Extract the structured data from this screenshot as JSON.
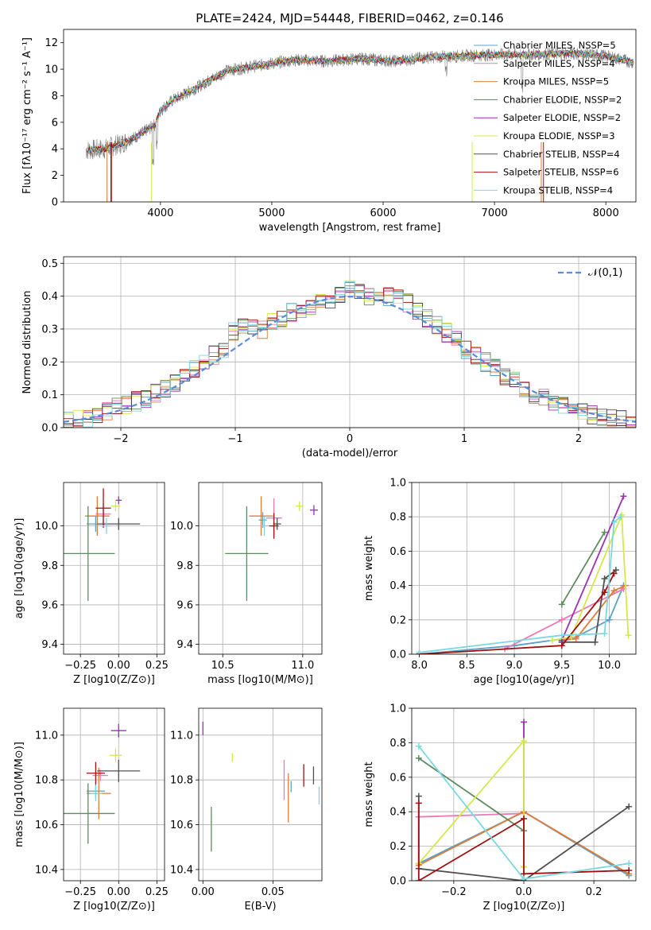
{
  "colors": {
    "chabrier_miles": "#5aa0c8",
    "salpeter_miles": "#e87ab8",
    "kroupa_miles": "#e07b39",
    "chabrier_elodie": "#5e8c5e",
    "salpeter_elodie": "#9b30b0",
    "kroupa_elodie": "#d4e84a",
    "chabrier_stelib": "#505050",
    "salpeter_stelib": "#a01010",
    "kroupa_stelib": "#7ad8e0",
    "normal_fit": "#5b8ad8"
  },
  "chart_data": [
    {
      "id": "spectrum",
      "type": "line",
      "title": "PLATE=2424, MJD=54448, FIBERID=0462, z=0.146",
      "xlabel": "wavelength [Angstrom, rest frame]",
      "ylabel": "Flux [fλ10⁻¹⁷ erg cm⁻² s⁻¹ A⁻¹]",
      "xlim": [
        3130,
        8270
      ],
      "ylim": [
        0,
        13
      ],
      "xticks": [
        "4000",
        "5000",
        "6000",
        "7000",
        "8000"
      ],
      "xtick_vals": [
        4000,
        5000,
        6000,
        7000,
        8000
      ],
      "yticks": [
        "0",
        "2",
        "4",
        "6",
        "8",
        "10",
        "12"
      ],
      "ytick_vals": [
        0,
        2,
        4,
        6,
        8,
        10,
        12
      ],
      "grid": false,
      "legend_position": "right",
      "legend": [
        "Chabrier MILES, NSSP=5",
        "Salpeter MILES, NSSP=4",
        "Kroupa MILES, NSSP=5",
        "Chabrier ELODIE, NSSP=2",
        "Salpeter ELODIE, NSSP=2",
        "Kroupa ELODIE, NSSP=3",
        "Chabrier STELIB, NSSP=4",
        "Salpeter STELIB, NSSP=6",
        "Kroupa STELIB, NSSP=4"
      ],
      "continuum": {
        "x": [
          3330,
          3500,
          3650,
          3800,
          3950,
          4000,
          4100,
          4300,
          4600,
          4900,
          5200,
          5500,
          5800,
          6100,
          6400,
          6700,
          7000,
          7300,
          7700,
          8000,
          8250
        ],
        "y": [
          3.9,
          4.0,
          4.4,
          5.0,
          5.8,
          6.9,
          7.6,
          8.5,
          9.9,
          10.3,
          10.7,
          10.6,
          10.8,
          10.6,
          10.9,
          11.0,
          11.1,
          11.1,
          11.2,
          11.0,
          10.5
        ]
      }
    },
    {
      "id": "residuals",
      "type": "line",
      "xlabel": "(data-model)/error",
      "ylabel": "Normed distribution",
      "xlim": [
        -2.5,
        2.5
      ],
      "ylim": [
        0,
        0.52
      ],
      "xticks": [
        "−2",
        "−1",
        "0",
        "1",
        "2"
      ],
      "xtick_vals": [
        -2,
        -1,
        0,
        1,
        2
      ],
      "yticks": [
        "0.0",
        "0.1",
        "0.2",
        "0.3",
        "0.4",
        "0.5"
      ],
      "ytick_vals": [
        0,
        0.1,
        0.2,
        0.3,
        0.4,
        0.5
      ],
      "grid": true,
      "legend_position": "top-right",
      "legend": [
        "𝒩(0,1)"
      ],
      "hist_base": [
        0.02,
        0.025,
        0.03,
        0.04,
        0.05,
        0.06,
        0.07,
        0.08,
        0.09,
        0.105,
        0.12,
        0.14,
        0.16,
        0.175,
        0.2,
        0.22,
        0.24,
        0.29,
        0.31,
        0.3,
        0.3,
        0.32,
        0.33,
        0.35,
        0.36,
        0.37,
        0.38,
        0.39,
        0.4,
        0.42,
        0.41,
        0.4,
        0.41,
        0.4,
        0.39,
        0.38,
        0.35,
        0.33,
        0.31,
        0.29,
        0.27,
        0.24,
        0.22,
        0.2,
        0.18,
        0.16,
        0.14,
        0.12,
        0.1,
        0.09,
        0.08,
        0.07,
        0.06,
        0.05,
        0.04,
        0.035,
        0.03,
        0.025,
        0.02
      ]
    },
    {
      "id": "age_vs_Z",
      "type": "scatter",
      "xlabel": "Z [log10(Z/Z⊙)]",
      "ylabel": "age  [log10(age/yr)]",
      "xlim": [
        -0.36,
        0.3
      ],
      "ylim": [
        9.35,
        10.22
      ],
      "xticks": [
        "−0.25",
        "0.00",
        "0.25"
      ],
      "xtick_vals": [
        -0.25,
        0,
        0.25
      ],
      "yticks": [
        "9.4",
        "9.6",
        "9.8",
        "10.0"
      ],
      "ytick_vals": [
        9.4,
        9.6,
        9.8,
        10.0
      ],
      "grid": true,
      "points": [
        {
          "s": "chabrier_miles",
          "x": -0.15,
          "y": 10.01,
          "xe": 0.12,
          "ye": 0.08
        },
        {
          "s": "salpeter_miles",
          "x": -0.1,
          "y": 10.06,
          "xe": 0.1,
          "ye": 0.1
        },
        {
          "s": "kroupa_miles",
          "x": -0.14,
          "y": 10.05,
          "xe": 0.16,
          "ye": 0.2
        },
        {
          "s": "chabrier_elodie",
          "x": -0.2,
          "y": 9.86,
          "xe": 0.35,
          "ye": 0.48
        },
        {
          "s": "salpeter_elodie",
          "x": 0.0,
          "y": 10.13,
          "xe": 0.04,
          "ye": 0.04
        },
        {
          "s": "kroupa_elodie",
          "x": -0.02,
          "y": 10.1,
          "xe": 0.06,
          "ye": 0.05
        },
        {
          "s": "chabrier_stelib",
          "x": 0.0,
          "y": 10.01,
          "xe": 0.28,
          "ye": 0.06
        },
        {
          "s": "salpeter_stelib",
          "x": -0.1,
          "y": 10.09,
          "xe": 0.1,
          "ye": 0.2
        },
        {
          "s": "kroupa_stelib",
          "x": -0.08,
          "y": 10.0,
          "xe": 0.08,
          "ye": 0.08
        }
      ]
    },
    {
      "id": "age_vs_mass",
      "type": "scatter",
      "xlabel": "mass [log10(M/M⊙)]",
      "ylabel": "",
      "xlim": [
        10.35,
        11.12
      ],
      "ylim": [
        9.35,
        10.22
      ],
      "xticks": [
        "10.5",
        "11.0"
      ],
      "xtick_vals": [
        10.5,
        11.0
      ],
      "yticks": [
        "9.4",
        "9.6",
        "9.8",
        "10.0"
      ],
      "ytick_vals": [
        9.4,
        9.6,
        9.8,
        10.0
      ],
      "grid": true,
      "points": [
        {
          "s": "chabrier_miles",
          "x": 10.75,
          "y": 10.03,
          "xe": 0.05,
          "ye": 0.08
        },
        {
          "s": "salpeter_miles",
          "x": 10.82,
          "y": 10.04,
          "xe": 0.1,
          "ye": 0.2
        },
        {
          "s": "kroupa_miles",
          "x": 10.74,
          "y": 10.05,
          "xe": 0.15,
          "ye": 0.2
        },
        {
          "s": "chabrier_elodie",
          "x": 10.65,
          "y": 9.86,
          "xe": 0.27,
          "ye": 0.48
        },
        {
          "s": "salpeter_elodie",
          "x": 11.07,
          "y": 10.08,
          "xe": 0.05,
          "ye": 0.05
        },
        {
          "s": "kroupa_elodie",
          "x": 10.98,
          "y": 10.1,
          "xe": 0.05,
          "ye": 0.05
        },
        {
          "s": "chabrier_stelib",
          "x": 10.84,
          "y": 10.01,
          "xe": 0.05,
          "ye": 0.06
        },
        {
          "s": "salpeter_stelib",
          "x": 10.82,
          "y": 10.0,
          "xe": 0.06,
          "ye": 0.13
        },
        {
          "s": "kroupa_stelib",
          "x": 10.76,
          "y": 10.0,
          "xe": 0.04,
          "ye": 0.1
        }
      ]
    },
    {
      "id": "weight_vs_age",
      "type": "line",
      "xlabel": "age  [log10(age/yr)]",
      "ylabel": "mass weight",
      "xlim": [
        7.92,
        10.28
      ],
      "ylim": [
        0,
        1
      ],
      "xticks": [
        "8.0",
        "8.5",
        "9.0",
        "9.5",
        "10.0"
      ],
      "xtick_vals": [
        8,
        8.5,
        9,
        9.5,
        10
      ],
      "yticks": [
        "0.0",
        "0.2",
        "0.4",
        "0.6",
        "0.8",
        "1.0"
      ],
      "ytick_vals": [
        0,
        0.2,
        0.4,
        0.6,
        0.8,
        1
      ],
      "grid": true,
      "series": [
        {
          "s": "chabrier_miles",
          "x": [
            8.0,
            9.0,
            9.65,
            10.0,
            10.15
          ],
          "y": [
            0.0,
            0.05,
            0.1,
            0.2,
            0.4
          ]
        },
        {
          "s": "salpeter_miles",
          "x": [
            8.9,
            9.5,
            10.15
          ],
          "y": [
            0.03,
            0.2,
            0.38
          ]
        },
        {
          "s": "kroupa_miles",
          "x": [
            9.5,
            9.65,
            10.05,
            10.17
          ],
          "y": [
            0.08,
            0.09,
            0.37,
            0.4
          ]
        },
        {
          "s": "chabrier_elodie",
          "x": [
            9.5,
            9.95
          ],
          "y": [
            0.29,
            0.71
          ]
        },
        {
          "s": "salpeter_elodie",
          "x": [
            9.5,
            10.15
          ],
          "y": [
            0.08,
            0.92
          ]
        },
        {
          "s": "kroupa_elodie",
          "x": [
            9.4,
            9.6,
            10.13,
            10.2
          ],
          "y": [
            0.08,
            0.1,
            0.81,
            0.11
          ]
        },
        {
          "s": "chabrier_stelib",
          "x": [
            9.5,
            9.85,
            9.95,
            10.07
          ],
          "y": [
            0.07,
            0.07,
            0.44,
            0.49
          ]
        },
        {
          "s": "salpeter_stelib",
          "x": [
            8.0,
            9.5,
            9.95,
            10.05
          ],
          "y": [
            0.0,
            0.05,
            0.36,
            0.47
          ]
        },
        {
          "s": "kroupa_stelib",
          "x": [
            8.0,
            9.5,
            9.95,
            10.05,
            10.12
          ],
          "y": [
            0.01,
            0.11,
            0.12,
            0.77,
            0.8
          ]
        }
      ]
    },
    {
      "id": "mass_vs_Z",
      "type": "scatter",
      "xlabel": "Z [log10(Z/Z⊙)]",
      "ylabel": "mass [log10(M/M⊙)]",
      "xlim": [
        -0.36,
        0.3
      ],
      "ylim": [
        10.35,
        11.12
      ],
      "xticks": [
        "−0.25",
        "0.00",
        "0.25"
      ],
      "xtick_vals": [
        -0.25,
        0,
        0.25
      ],
      "yticks": [
        "10.4",
        "10.6",
        "10.8",
        "11.0"
      ],
      "ytick_vals": [
        10.4,
        10.6,
        10.8,
        11.0
      ],
      "grid": true,
      "points": [
        {
          "s": "chabrier_miles",
          "x": -0.15,
          "y": 10.75,
          "xe": 0.12,
          "ye": 0.06
        },
        {
          "s": "salpeter_miles",
          "x": -0.12,
          "y": 10.82,
          "xe": 0.1,
          "ye": 0.05
        },
        {
          "s": "kroupa_miles",
          "x": -0.13,
          "y": 10.74,
          "xe": 0.16,
          "ye": 0.23
        },
        {
          "s": "chabrier_elodie",
          "x": -0.2,
          "y": 10.65,
          "xe": 0.35,
          "ye": 0.27
        },
        {
          "s": "salpeter_elodie",
          "x": 0.0,
          "y": 11.02,
          "xe": 0.1,
          "ye": 0.06
        },
        {
          "s": "kroupa_elodie",
          "x": -0.02,
          "y": 10.91,
          "xe": 0.08,
          "ye": 0.06
        },
        {
          "s": "chabrier_stelib",
          "x": 0.0,
          "y": 10.84,
          "xe": 0.28,
          "ye": 0.1
        },
        {
          "s": "salpeter_stelib",
          "x": -0.15,
          "y": 10.83,
          "xe": 0.12,
          "ye": 0.1
        },
        {
          "s": "kroupa_stelib",
          "x": -0.15,
          "y": 10.74,
          "xe": 0.08,
          "ye": 0.07
        }
      ]
    },
    {
      "id": "mass_vs_EBV",
      "type": "scatter",
      "xlabel": "E(B-V)",
      "ylabel": "",
      "xlim": [
        -0.003,
        0.085
      ],
      "ylim": [
        10.35,
        11.12
      ],
      "xticks": [
        "0.00",
        "0.05"
      ],
      "xtick_vals": [
        0,
        0.05
      ],
      "yticks": [
        "10.4",
        "10.6",
        "10.8",
        "11.0"
      ],
      "ytick_vals": [
        10.4,
        10.6,
        10.8,
        11.0
      ],
      "grid": true,
      "points": [
        {
          "s": "chabrier_miles",
          "x": 0.063,
          "y": 10.77,
          "xe": 0,
          "ye": 0.05
        },
        {
          "s": "salpeter_miles",
          "x": 0.058,
          "y": 10.8,
          "xe": 0,
          "ye": 0.18
        },
        {
          "s": "kroupa_miles",
          "x": 0.061,
          "y": 10.72,
          "xe": 0,
          "ye": 0.22
        },
        {
          "s": "chabrier_elodie",
          "x": 0.006,
          "y": 10.58,
          "xe": 0,
          "ye": 0.2
        },
        {
          "s": "salpeter_elodie",
          "x": 0.0,
          "y": 11.03,
          "xe": 0,
          "ye": 0.06
        },
        {
          "s": "kroupa_elodie",
          "x": 0.021,
          "y": 10.9,
          "xe": 0,
          "ye": 0.04
        },
        {
          "s": "chabrier_stelib",
          "x": 0.079,
          "y": 10.82,
          "xe": 0,
          "ye": 0.08
        },
        {
          "s": "salpeter_stelib",
          "x": 0.072,
          "y": 10.82,
          "xe": 0,
          "ye": 0.1
        },
        {
          "s": "kroupa_stelib",
          "x": 0.083,
          "y": 10.73,
          "xe": 0,
          "ye": 0.08
        }
      ]
    },
    {
      "id": "weight_vs_Z",
      "type": "line",
      "xlabel": "Z [log10(Z/Z⊙)]",
      "ylabel": "mass weight",
      "xlim": [
        -0.32,
        0.32
      ],
      "ylim": [
        0,
        1
      ],
      "xticks": [
        "−0.2",
        "0.0",
        "0.2"
      ],
      "xtick_vals": [
        -0.2,
        0,
        0.2
      ],
      "yticks": [
        "0.0",
        "0.2",
        "0.4",
        "0.6",
        "0.8",
        "1.0"
      ],
      "ytick_vals": [
        0,
        0.2,
        0.4,
        0.6,
        0.8,
        1
      ],
      "grid": true,
      "series": [
        {
          "s": "chabrier_miles",
          "x": [
            -0.3,
            0.0,
            0.3
          ],
          "y": [
            0.1,
            0.4,
            0.03
          ]
        },
        {
          "s": "salpeter_miles",
          "x": [
            -0.3,
            0.0
          ],
          "y": [
            0.37,
            0.39
          ]
        },
        {
          "s": "kroupa_miles",
          "x": [
            -0.3,
            0.0,
            0.3
          ],
          "y": [
            0.09,
            0.4,
            0.04
          ]
        },
        {
          "s": "chabrier_elodie",
          "x": [
            -0.3,
            0.0
          ],
          "y": [
            0.71,
            0.29
          ]
        },
        {
          "s": "salpeter_elodie",
          "x": [
            0.0,
            0.0
          ],
          "y": [
            0.08,
            0.92
          ]
        },
        {
          "s": "kroupa_elodie",
          "x": [
            -0.3,
            0.0,
            0.0
          ],
          "y": [
            0.1,
            0.81,
            0.08
          ]
        },
        {
          "s": "chabrier_stelib",
          "x": [
            -0.3,
            -0.3,
            0.0,
            0.3
          ],
          "y": [
            0.49,
            0.07,
            0.0,
            0.43
          ]
        },
        {
          "s": "salpeter_stelib",
          "x": [
            -0.3,
            -0.3,
            0.0,
            0.0,
            0.3
          ],
          "y": [
            0.45,
            0.0,
            0.36,
            0.04,
            0.06
          ]
        },
        {
          "s": "kroupa_stelib",
          "x": [
            -0.3,
            0.0,
            0.3
          ],
          "y": [
            0.78,
            0.01,
            0.1
          ]
        }
      ]
    }
  ],
  "series_order": [
    "chabrier_miles",
    "salpeter_miles",
    "kroupa_miles",
    "chabrier_elodie",
    "salpeter_elodie",
    "kroupa_elodie",
    "chabrier_stelib",
    "salpeter_stelib",
    "kroupa_stelib"
  ]
}
